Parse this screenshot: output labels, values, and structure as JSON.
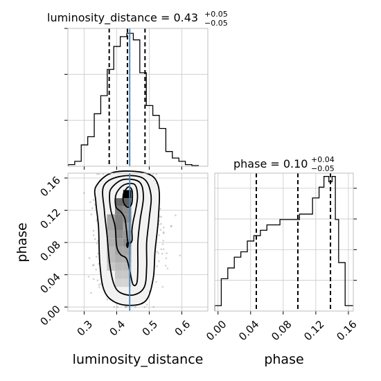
{
  "chart_data": {
    "type": "corner",
    "parameters": [
      "luminosity_distance",
      "phase"
    ],
    "truth_color": "#4682b4",
    "panels": {
      "luminosity_distance_hist": {
        "type": "histogram",
        "title_main": "luminosity_distance = 0.43",
        "title_sup": "+0.05",
        "title_sub": "−0.05",
        "xlim": [
          0.25,
          0.68
        ],
        "bin_edges": [
          0.251,
          0.271,
          0.291,
          0.311,
          0.331,
          0.351,
          0.371,
          0.391,
          0.411,
          0.431,
          0.451,
          0.471,
          0.491,
          0.511,
          0.531,
          0.551,
          0.571,
          0.591,
          0.611,
          0.631,
          0.651
        ],
        "density": [
          0.5,
          1.5,
          6.5,
          9.0,
          16.0,
          21.5,
          29.5,
          36.5,
          39.5,
          40.5,
          38.5,
          28.5,
          18.5,
          15.5,
          11.5,
          4.5,
          2.5,
          1.5,
          0.5,
          0.2
        ],
        "ymax": 42,
        "quantiles": [
          0.377,
          0.433,
          0.487
        ],
        "truth": 0.44,
        "xticks": [
          0.3,
          0.4,
          0.5,
          0.6
        ]
      },
      "phase_hist": {
        "type": "histogram",
        "title_main": "phase = 0.10",
        "title_sup": "+0.04",
        "title_sub": "−0.05",
        "xlim": [
          -0.004,
          0.166
        ],
        "bin_edges": [
          -0.004,
          0.004,
          0.012,
          0.02,
          0.028,
          0.036,
          0.044,
          0.052,
          0.06,
          0.068,
          0.076,
          0.084,
          0.092,
          0.1,
          0.108,
          0.116,
          0.124,
          0.13,
          0.136,
          0.14,
          0.144,
          0.148,
          0.156,
          0.166
        ],
        "density": [
          0.5,
          3.0,
          4.0,
          5.0,
          5.5,
          6.5,
          7.0,
          7.5,
          8.0,
          8.0,
          8.5,
          8.5,
          8.5,
          9.0,
          9.0,
          10.5,
          11.5,
          12.5,
          12.0,
          12.5,
          8.5,
          4.5,
          0.5
        ],
        "ymax": 12.8,
        "quantiles": [
          0.047,
          0.098,
          0.138
        ],
        "xticks": [
          0.0,
          0.04,
          0.08,
          0.12,
          0.16
        ],
        "xticklabels": [
          "0.00",
          "0.04",
          "0.08",
          "0.12",
          "0.16"
        ],
        "xlabel": "phase"
      },
      "joint": {
        "type": "2d-density",
        "xlim": [
          0.25,
          0.68
        ],
        "ylim": [
          -0.005,
          0.166
        ],
        "xlabel": "luminosity_distance",
        "ylabel": "phase",
        "xticks": [
          0.3,
          0.4,
          0.5,
          0.6
        ],
        "yticks": [
          0.0,
          0.04,
          0.08,
          0.12,
          0.16
        ],
        "yticklabels": [
          "0.00",
          "0.04",
          "0.08",
          "0.12",
          "0.16"
        ],
        "truth_x": 0.44,
        "cells": [
          {
            "x": 0.4325,
            "y": 0.14,
            "w": 0.025,
            "h": 0.01,
            "density": 1.0
          },
          {
            "x": 0.4075,
            "y": 0.13,
            "w": 0.025,
            "h": 0.01,
            "density": 0.55
          },
          {
            "x": 0.4325,
            "y": 0.13,
            "w": 0.025,
            "h": 0.01,
            "density": 0.6
          },
          {
            "x": 0.4075,
            "y": 0.12,
            "w": 0.025,
            "h": 0.01,
            "density": 0.45
          },
          {
            "x": 0.4325,
            "y": 0.12,
            "w": 0.025,
            "h": 0.01,
            "density": 0.4
          },
          {
            "x": 0.3825,
            "y": 0.11,
            "w": 0.025,
            "h": 0.01,
            "density": 0.3
          },
          {
            "x": 0.4075,
            "y": 0.11,
            "w": 0.025,
            "h": 0.01,
            "density": 0.45
          },
          {
            "x": 0.4325,
            "y": 0.11,
            "w": 0.025,
            "h": 0.01,
            "density": 0.4
          },
          {
            "x": 0.3825,
            "y": 0.1,
            "w": 0.025,
            "h": 0.01,
            "density": 0.3
          },
          {
            "x": 0.4075,
            "y": 0.1,
            "w": 0.025,
            "h": 0.01,
            "density": 0.45
          },
          {
            "x": 0.4325,
            "y": 0.1,
            "w": 0.025,
            "h": 0.01,
            "density": 0.3
          },
          {
            "x": 0.3825,
            "y": 0.09,
            "w": 0.025,
            "h": 0.01,
            "density": 0.25
          },
          {
            "x": 0.4075,
            "y": 0.09,
            "w": 0.025,
            "h": 0.01,
            "density": 0.4
          },
          {
            "x": 0.4325,
            "y": 0.09,
            "w": 0.025,
            "h": 0.01,
            "density": 0.35
          },
          {
            "x": 0.3825,
            "y": 0.08,
            "w": 0.025,
            "h": 0.01,
            "density": 0.25
          },
          {
            "x": 0.4075,
            "y": 0.08,
            "w": 0.025,
            "h": 0.01,
            "density": 0.35
          },
          {
            "x": 0.4325,
            "y": 0.08,
            "w": 0.025,
            "h": 0.01,
            "density": 0.4
          },
          {
            "x": 0.3825,
            "y": 0.07,
            "w": 0.025,
            "h": 0.01,
            "density": 0.2
          },
          {
            "x": 0.4075,
            "y": 0.07,
            "w": 0.025,
            "h": 0.01,
            "density": 0.3
          },
          {
            "x": 0.4325,
            "y": 0.07,
            "w": 0.025,
            "h": 0.01,
            "density": 0.3
          },
          {
            "x": 0.3825,
            "y": 0.06,
            "w": 0.025,
            "h": 0.01,
            "density": 0.2
          },
          {
            "x": 0.4075,
            "y": 0.06,
            "w": 0.025,
            "h": 0.01,
            "density": 0.25
          },
          {
            "x": 0.4325,
            "y": 0.06,
            "w": 0.025,
            "h": 0.01,
            "density": 0.25
          },
          {
            "x": 0.3825,
            "y": 0.05,
            "w": 0.025,
            "h": 0.01,
            "density": 0.15
          },
          {
            "x": 0.4075,
            "y": 0.05,
            "w": 0.025,
            "h": 0.01,
            "density": 0.2
          },
          {
            "x": 0.4325,
            "y": 0.05,
            "w": 0.025,
            "h": 0.01,
            "density": 0.2
          },
          {
            "x": 0.4075,
            "y": 0.04,
            "w": 0.025,
            "h": 0.01,
            "density": 0.15
          },
          {
            "x": 0.4325,
            "y": 0.04,
            "w": 0.025,
            "h": 0.01,
            "density": 0.15
          },
          {
            "x": 0.4075,
            "y": 0.03,
            "w": 0.025,
            "h": 0.01,
            "density": 0.1
          },
          {
            "x": 0.4325,
            "y": 0.03,
            "w": 0.025,
            "h": 0.01,
            "density": 0.1
          }
        ],
        "contours": [
          [
            [
              0.425,
              0.144
            ],
            [
              0.436,
              0.149
            ],
            [
              0.447,
              0.145
            ],
            [
              0.448,
              0.133
            ],
            [
              0.444,
              0.126
            ],
            [
              0.432,
              0.124
            ],
            [
              0.421,
              0.13
            ],
            [
              0.42,
              0.139
            ]
          ],
          [
            [
              0.405,
              0.145
            ],
            [
              0.425,
              0.152
            ],
            [
              0.455,
              0.152
            ],
            [
              0.464,
              0.138
            ],
            [
              0.458,
              0.12
            ],
            [
              0.45,
              0.105
            ],
            [
              0.447,
              0.095
            ],
            [
              0.447,
              0.082
            ],
            [
              0.435,
              0.08
            ],
            [
              0.43,
              0.095
            ],
            [
              0.425,
              0.11
            ],
            [
              0.413,
              0.118
            ],
            [
              0.398,
              0.124
            ],
            [
              0.396,
              0.136
            ]
          ],
          [
            [
              0.385,
              0.148
            ],
            [
              0.42,
              0.158
            ],
            [
              0.47,
              0.155
            ],
            [
              0.482,
              0.136
            ],
            [
              0.472,
              0.108
            ],
            [
              0.465,
              0.08
            ],
            [
              0.465,
              0.05
            ],
            [
              0.462,
              0.03
            ],
            [
              0.45,
              0.028
            ],
            [
              0.44,
              0.045
            ],
            [
              0.43,
              0.06
            ],
            [
              0.412,
              0.065
            ],
            [
              0.4,
              0.075
            ],
            [
              0.395,
              0.1
            ],
            [
              0.382,
              0.12
            ],
            [
              0.378,
              0.138
            ]
          ],
          [
            [
              0.36,
              0.15
            ],
            [
              0.41,
              0.162
            ],
            [
              0.48,
              0.16
            ],
            [
              0.505,
              0.14
            ],
            [
              0.5,
              0.11
            ],
            [
              0.492,
              0.08
            ],
            [
              0.492,
              0.05
            ],
            [
              0.485,
              0.025
            ],
            [
              0.452,
              0.015
            ],
            [
              0.41,
              0.018
            ],
            [
              0.39,
              0.03
            ],
            [
              0.378,
              0.055
            ],
            [
              0.37,
              0.09
            ],
            [
              0.362,
              0.12
            ]
          ],
          [
            [
              0.337,
              0.15
            ],
            [
              0.39,
              0.167
            ],
            [
              0.49,
              0.166
            ],
            [
              0.528,
              0.15
            ],
            [
              0.528,
              0.11
            ],
            [
              0.518,
              0.07
            ],
            [
              0.512,
              0.035
            ],
            [
              0.49,
              0.008
            ],
            [
              0.44,
              0.002
            ],
            [
              0.39,
              0.007
            ],
            [
              0.36,
              0.022
            ],
            [
              0.348,
              0.055
            ],
            [
              0.344,
              0.1
            ],
            [
              0.336,
              0.13
            ]
          ]
        ],
        "mode_marker": {
          "x": 0.433,
          "y": 0.077
        }
      }
    }
  }
}
